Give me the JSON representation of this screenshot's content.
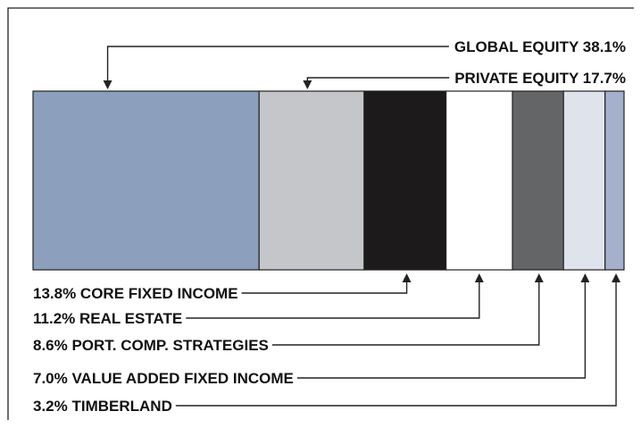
{
  "chart_data": {
    "type": "bar",
    "orientation": "horizontal-stacked-100",
    "categories": [
      "GLOBAL EQUITY",
      "PRIVATE EQUITY",
      "CORE FIXED INCOME",
      "REAL ESTATE",
      "PORT. COMP. STRATEGIES",
      "VALUE ADDED FIXED INCOME",
      "TIMBERLAND"
    ],
    "values": [
      38.1,
      17.7,
      13.8,
      11.2,
      8.6,
      7.0,
      3.2
    ],
    "colors": [
      "#8c9fbc",
      "#c4c6c9",
      "#1c1a1b",
      "#ffffff",
      "#646566",
      "#dfe3ec",
      "#a4b0cc"
    ],
    "labels": [
      "GLOBAL EQUITY 38.1%",
      "PRIVATE EQUITY 17.7%",
      "13.8% CORE FIXED INCOME",
      "11.2% REAL ESTATE",
      "8.6% PORT. COMP. STRATEGIES",
      "7.0% VALUE ADDED FIXED INCOME",
      "3.2% TIMBERLAND"
    ],
    "label_positions": [
      "above",
      "above",
      "below",
      "below",
      "below",
      "below",
      "below"
    ],
    "title": "",
    "xlabel": "",
    "ylabel": "",
    "grid": false,
    "legend": "none"
  }
}
